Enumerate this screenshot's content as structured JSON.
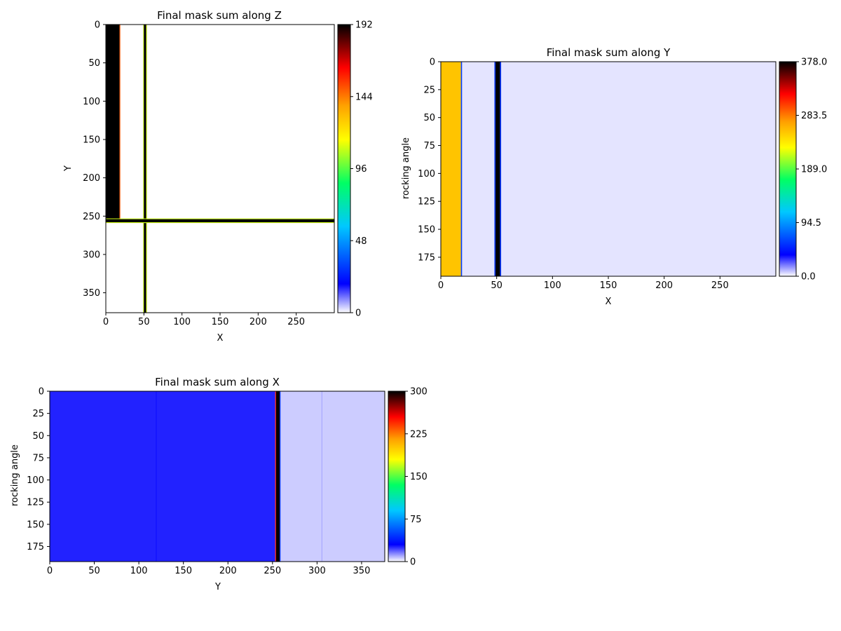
{
  "chart_data": [
    {
      "type": "heatmap",
      "title": "Final mask sum along Z",
      "xlabel": "X",
      "ylabel": "Y",
      "xlim": [
        0,
        300
      ],
      "ylim": [
        376,
        0
      ],
      "xticks": [
        0,
        50,
        100,
        150,
        200,
        250
      ],
      "yticks": [
        0,
        50,
        100,
        150,
        200,
        250,
        300,
        350
      ],
      "colormap": "white-blue-cyan-green-yellow-orange-red-black",
      "colorbar": {
        "vmin": 0,
        "vmax": 192,
        "ticks": [
          "0",
          "48",
          "96",
          "144",
          "192"
        ]
      },
      "regions": [
        {
          "x": [
            0,
            18
          ],
          "y": [
            0,
            255
          ],
          "value": 192
        },
        {
          "x": [
            18,
            19
          ],
          "y": [
            0,
            255
          ],
          "value": 150
        },
        {
          "x": [
            49,
            50
          ],
          "y": [
            0,
            376
          ],
          "value": 110
        },
        {
          "x": [
            50,
            53
          ],
          "y": [
            0,
            376
          ],
          "value": 192
        },
        {
          "x": [
            53,
            54
          ],
          "y": [
            0,
            376
          ],
          "value": 110
        },
        {
          "x": [
            0,
            300
          ],
          "y": [
            253,
            254
          ],
          "value": 110
        },
        {
          "x": [
            0,
            300
          ],
          "y": [
            254,
            258
          ],
          "value": 192
        },
        {
          "x": [
            0,
            300
          ],
          "y": [
            258,
            259
          ],
          "value": 110
        }
      ]
    },
    {
      "type": "heatmap",
      "title": "Final mask sum along Y",
      "xlabel": "X",
      "ylabel": "rocking angle",
      "xlim": [
        0,
        300
      ],
      "ylim": [
        192,
        0
      ],
      "xticks": [
        0,
        50,
        100,
        150,
        200,
        250
      ],
      "yticks": [
        0,
        25,
        50,
        75,
        100,
        125,
        150,
        175
      ],
      "colormap": "white-blue-cyan-green-yellow-orange-red-black",
      "colorbar": {
        "vmin": 0,
        "vmax": 378,
        "ticks": [
          "0.0",
          "94.5",
          "189.0",
          "283.5",
          "378.0"
        ]
      },
      "background_value": 4,
      "regions": [
        {
          "x": [
            0,
            18
          ],
          "y": [
            0,
            192
          ],
          "value": 255
        },
        {
          "x": [
            18,
            19
          ],
          "y": [
            0,
            192
          ],
          "value": 60
        },
        {
          "x": [
            48,
            49
          ],
          "y": [
            0,
            192
          ],
          "value": 55
        },
        {
          "x": [
            49,
            53
          ],
          "y": [
            0,
            192
          ],
          "value": 378
        },
        {
          "x": [
            53,
            54
          ],
          "y": [
            0,
            192
          ],
          "value": 55
        }
      ]
    },
    {
      "type": "heatmap",
      "title": "Final mask sum along X",
      "xlabel": "Y",
      "ylabel": "rocking angle",
      "xlim": [
        0,
        376
      ],
      "ylim": [
        192,
        0
      ],
      "xticks": [
        0,
        50,
        100,
        150,
        200,
        250,
        300,
        350
      ],
      "yticks": [
        0,
        25,
        50,
        75,
        100,
        125,
        150,
        175
      ],
      "colormap": "white-blue-cyan-green-yellow-orange-red-black",
      "colorbar": {
        "vmin": 0,
        "vmax": 300,
        "ticks": [
          "0",
          "75",
          "150",
          "225",
          "300"
        ]
      },
      "background_value": 6,
      "regions": [
        {
          "x": [
            0,
            253
          ],
          "y": [
            0,
            192
          ],
          "value": 26
        },
        {
          "x": [
            119,
            120
          ],
          "y": [
            0,
            192
          ],
          "value": 28
        },
        {
          "x": [
            253,
            254
          ],
          "y": [
            0,
            192
          ],
          "value": 250
        },
        {
          "x": [
            254,
            258
          ],
          "y": [
            0,
            192
          ],
          "value": 300
        },
        {
          "x": [
            258,
            259
          ],
          "y": [
            0,
            192
          ],
          "value": 45
        },
        {
          "x": [
            305,
            306
          ],
          "y": [
            0,
            192
          ],
          "value": 10
        }
      ]
    }
  ]
}
